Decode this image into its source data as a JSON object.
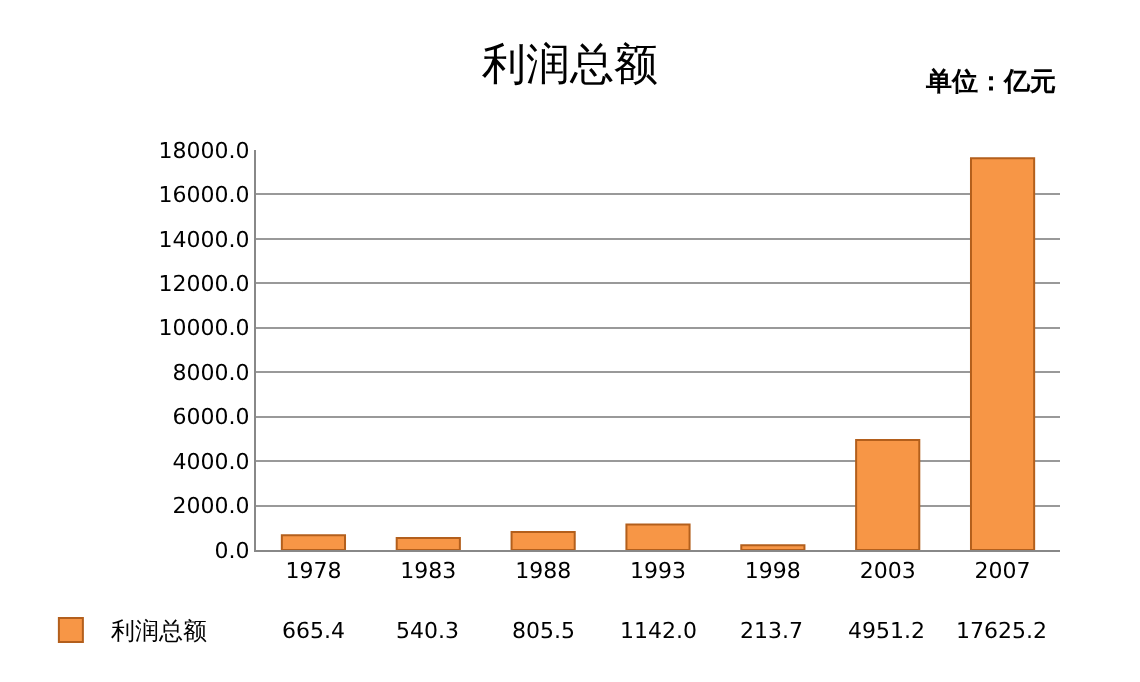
{
  "chart_data": {
    "type": "bar",
    "title": "利润总额",
    "annotations": [
      "单位：亿元"
    ],
    "categories": [
      "1978",
      "1983",
      "1988",
      "1993",
      "1998",
      "2003",
      "2007"
    ],
    "series": [
      {
        "name": "利润总额",
        "color": "#f79646",
        "values": [
          665.4,
          540.3,
          805.5,
          1142.0,
          213.7,
          4951.2,
          17625.2
        ],
        "value_labels": [
          "665.4",
          "540.3",
          "805.5",
          "1142.0",
          "213.7",
          "4951.2",
          "17625.2"
        ]
      }
    ],
    "ylim": [
      0,
      18000
    ],
    "yticks": [
      {
        "value": 0,
        "label": "0.0"
      },
      {
        "value": 2000,
        "label": "2000.0"
      },
      {
        "value": 4000,
        "label": "4000.0"
      },
      {
        "value": 6000,
        "label": "6000.0"
      },
      {
        "value": 8000,
        "label": "8000.0"
      },
      {
        "value": 10000,
        "label": "10000.0"
      },
      {
        "value": 12000,
        "label": "12000.0"
      },
      {
        "value": 14000,
        "label": "14000.0"
      },
      {
        "value": 16000,
        "label": "16000.0"
      },
      {
        "value": 18000,
        "label": "18000.0"
      }
    ],
    "grid": "y",
    "legend": "bottom left"
  }
}
